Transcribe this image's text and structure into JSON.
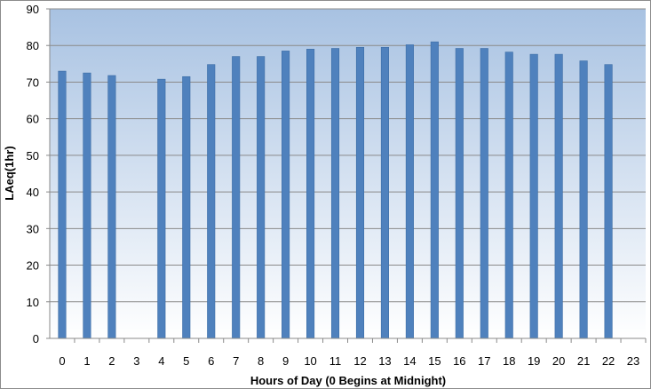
{
  "chart_data": {
    "type": "bar",
    "title": "",
    "xlabel": "Hours of Day (0 Begins at Midnight)",
    "ylabel": "LAeq(1hr)",
    "ylim": [
      0,
      90
    ],
    "yticks": [
      0,
      10,
      20,
      30,
      40,
      50,
      60,
      70,
      80,
      90
    ],
    "categories": [
      "0",
      "1",
      "2",
      "3",
      "4",
      "5",
      "6",
      "7",
      "8",
      "9",
      "10",
      "11",
      "12",
      "13",
      "14",
      "15",
      "16",
      "17",
      "18",
      "19",
      "20",
      "21",
      "22",
      "23"
    ],
    "values": [
      73,
      72.5,
      71.8,
      null,
      70.8,
      71.5,
      74.8,
      77,
      77,
      78.5,
      79,
      79.2,
      79.5,
      79.5,
      80.2,
      81,
      79.2,
      79.2,
      78.2,
      77.6,
      77.6,
      75.8,
      74.8,
      null
    ],
    "grid": true,
    "legend": "none",
    "colors": {
      "bar": "#4f81bd",
      "bar_edge": "#3c6da6",
      "plot_top": "#a8c2e2",
      "plot_bottom": "#ffffff",
      "gridline": "#8a8a8a",
      "frame": "#8c8c8c"
    }
  }
}
